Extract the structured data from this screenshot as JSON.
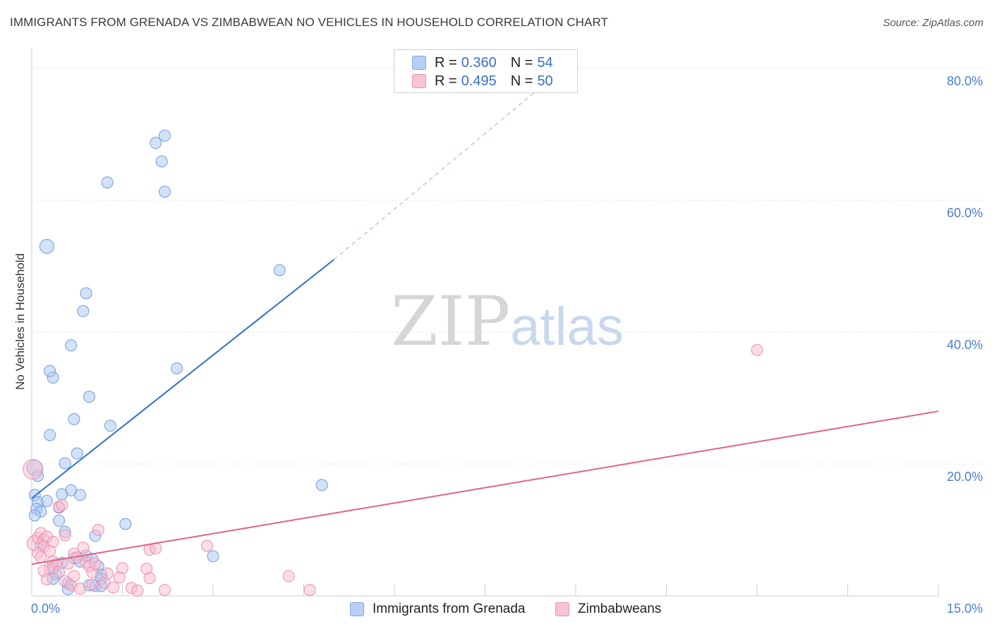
{
  "title": "IMMIGRANTS FROM GRENADA VS ZIMBABWEAN NO VEHICLES IN HOUSEHOLD CORRELATION CHART",
  "source": "Source: ZipAtlas.com",
  "watermark": {
    "zip": "ZIP",
    "atlas": "atlas"
  },
  "legend": {
    "rows": [
      {
        "r_label": "R =",
        "r_value": "0.360",
        "n_label": "N =",
        "n_value": "54",
        "color": "#b7d0f4",
        "border": "#7ea8e4"
      },
      {
        "r_label": "R =",
        "r_value": "0.495",
        "n_label": "N =",
        "n_value": "50",
        "color": "#f8c3d3",
        "border": "#ee92ae"
      }
    ]
  },
  "bottom_legend": [
    {
      "label": "Immigrants from Grenada",
      "color": "#b7d0f4",
      "border": "#7ea8e4"
    },
    {
      "label": "Zimbabweans",
      "color": "#f8c3d3",
      "border": "#ee92ae"
    }
  ],
  "chart_data": {
    "type": "scatter",
    "title": "IMMIGRANTS FROM GRENADA VS ZIMBABWEAN NO VEHICLES IN HOUSEHOLD CORRELATION CHART",
    "xlabel": "",
    "ylabel": "No Vehicles in Household",
    "xlim": [
      0,
      15
    ],
    "ylim": [
      0,
      80
    ],
    "x_tick_labels": [
      {
        "value": 0,
        "label": "0.0%"
      },
      {
        "value": 15,
        "label": "15.0%"
      }
    ],
    "y_tick_labels": [
      {
        "value": 20,
        "label": "20.0%"
      },
      {
        "value": 40,
        "label": "40.0%"
      },
      {
        "value": 60,
        "label": "60.0%"
      },
      {
        "value": 80,
        "label": "80.0%"
      }
    ],
    "x_minor_ticks": [
      1.5,
      3,
      4.5,
      6,
      7.5,
      9,
      10.5,
      12,
      13.5,
      15
    ],
    "y_gridlines": [
      20,
      40,
      60,
      80
    ],
    "series": [
      {
        "name": "Immigrants from Grenada",
        "color": "#a9c6f0",
        "stroke": "#6f9ee0",
        "trend": {
          "x0": 0,
          "y0": 14.8,
          "x1": 5,
          "y1": 51.0,
          "dash_to_x": 8.4,
          "dash_to_y": 77.0,
          "color": "#2f6fcc"
        },
        "points": [
          {
            "x": 0.05,
            "y": 19.4,
            "r": 11
          },
          {
            "x": 0.1,
            "y": 18.2
          },
          {
            "x": 0.05,
            "y": 15.3
          },
          {
            "x": 0.1,
            "y": 14.2
          },
          {
            "x": 0.08,
            "y": 13.2
          },
          {
            "x": 0.15,
            "y": 12.8
          },
          {
            "x": 0.05,
            "y": 12.2
          },
          {
            "x": 0.25,
            "y": 14.4
          },
          {
            "x": 0.3,
            "y": 24.4
          },
          {
            "x": 0.35,
            "y": 33.1
          },
          {
            "x": 0.3,
            "y": 34.1
          },
          {
            "x": 0.25,
            "y": 53.0,
            "r": 10
          },
          {
            "x": 0.65,
            "y": 38.0
          },
          {
            "x": 0.85,
            "y": 43.2
          },
          {
            "x": 0.9,
            "y": 45.9
          },
          {
            "x": 0.7,
            "y": 26.8
          },
          {
            "x": 0.95,
            "y": 30.2
          },
          {
            "x": 1.3,
            "y": 25.8
          },
          {
            "x": 0.75,
            "y": 21.6
          },
          {
            "x": 0.55,
            "y": 20.1
          },
          {
            "x": 0.65,
            "y": 16.0
          },
          {
            "x": 0.5,
            "y": 15.4
          },
          {
            "x": 0.8,
            "y": 15.3
          },
          {
            "x": 0.45,
            "y": 13.4
          },
          {
            "x": 0.45,
            "y": 11.4
          },
          {
            "x": 0.55,
            "y": 9.7
          },
          {
            "x": 1.05,
            "y": 9.1
          },
          {
            "x": 1.55,
            "y": 10.9
          },
          {
            "x": 0.9,
            "y": 6.1
          },
          {
            "x": 0.7,
            "y": 5.7
          },
          {
            "x": 1.0,
            "y": 5.6
          },
          {
            "x": 0.5,
            "y": 5.0
          },
          {
            "x": 1.1,
            "y": 4.5
          },
          {
            "x": 1.15,
            "y": 3.2
          },
          {
            "x": 1.15,
            "y": 2.6
          },
          {
            "x": 0.4,
            "y": 3.3
          },
          {
            "x": 0.35,
            "y": 2.6
          },
          {
            "x": 0.6,
            "y": 1.9
          },
          {
            "x": 0.95,
            "y": 1.6
          },
          {
            "x": 1.05,
            "y": 1.5
          },
          {
            "x": 1.15,
            "y": 1.5
          },
          {
            "x": 0.6,
            "y": 1.0
          },
          {
            "x": 1.25,
            "y": 62.7
          },
          {
            "x": 2.05,
            "y": 68.7
          },
          {
            "x": 2.2,
            "y": 69.8
          },
          {
            "x": 2.15,
            "y": 65.9
          },
          {
            "x": 2.2,
            "y": 61.3
          },
          {
            "x": 2.4,
            "y": 34.5
          },
          {
            "x": 4.1,
            "y": 49.4
          },
          {
            "x": 4.8,
            "y": 16.8
          },
          {
            "x": 3.0,
            "y": 6.0
          },
          {
            "x": 0.35,
            "y": 4.2
          },
          {
            "x": 0.8,
            "y": 5.2
          },
          {
            "x": 0.15,
            "y": 7.8
          }
        ]
      },
      {
        "name": "Zimbabweans",
        "color": "#f7bccd",
        "stroke": "#ee8fae",
        "trend": {
          "x0": 0,
          "y0": 4.8,
          "x1": 15,
          "y1": 28.0,
          "color": "#e2608c"
        },
        "points": [
          {
            "x": 0.02,
            "y": 19.2,
            "r": 14
          },
          {
            "x": 0.05,
            "y": 8.0,
            "r": 11
          },
          {
            "x": 0.1,
            "y": 8.8
          },
          {
            "x": 0.15,
            "y": 9.5
          },
          {
            "x": 0.2,
            "y": 8.5
          },
          {
            "x": 0.25,
            "y": 9.0
          },
          {
            "x": 0.2,
            "y": 7.5
          },
          {
            "x": 0.3,
            "y": 6.8
          },
          {
            "x": 0.35,
            "y": 5.2
          },
          {
            "x": 0.4,
            "y": 4.8
          },
          {
            "x": 0.45,
            "y": 13.5
          },
          {
            "x": 0.5,
            "y": 13.8
          },
          {
            "x": 0.55,
            "y": 9.2
          },
          {
            "x": 0.3,
            "y": 4.1
          },
          {
            "x": 0.2,
            "y": 3.8
          },
          {
            "x": 0.45,
            "y": 3.6
          },
          {
            "x": 0.55,
            "y": 2.2
          },
          {
            "x": 0.65,
            "y": 1.6
          },
          {
            "x": 0.7,
            "y": 6.4
          },
          {
            "x": 0.75,
            "y": 5.8
          },
          {
            "x": 0.85,
            "y": 7.3
          },
          {
            "x": 0.9,
            "y": 5.1
          },
          {
            "x": 0.95,
            "y": 4.5
          },
          {
            "x": 1.0,
            "y": 3.6
          },
          {
            "x": 1.05,
            "y": 4.9
          },
          {
            "x": 1.1,
            "y": 10.0
          },
          {
            "x": 1.2,
            "y": 2.0
          },
          {
            "x": 1.25,
            "y": 3.4
          },
          {
            "x": 1.5,
            "y": 4.2
          },
          {
            "x": 1.45,
            "y": 2.8
          },
          {
            "x": 1.65,
            "y": 1.2
          },
          {
            "x": 1.75,
            "y": 0.8
          },
          {
            "x": 1.9,
            "y": 4.1
          },
          {
            "x": 1.95,
            "y": 2.7
          },
          {
            "x": 1.95,
            "y": 7.0
          },
          {
            "x": 2.05,
            "y": 7.2
          },
          {
            "x": 2.2,
            "y": 0.9
          },
          {
            "x": 2.9,
            "y": 7.6
          },
          {
            "x": 4.25,
            "y": 3.0
          },
          {
            "x": 4.6,
            "y": 0.9
          },
          {
            "x": 12.0,
            "y": 37.3
          },
          {
            "x": 0.1,
            "y": 6.5
          },
          {
            "x": 0.6,
            "y": 4.9
          },
          {
            "x": 0.8,
            "y": 1.1
          },
          {
            "x": 1.35,
            "y": 1.3
          },
          {
            "x": 0.35,
            "y": 8.2
          },
          {
            "x": 1.0,
            "y": 1.7
          },
          {
            "x": 0.25,
            "y": 2.5
          },
          {
            "x": 0.15,
            "y": 5.9
          },
          {
            "x": 0.7,
            "y": 3.0
          }
        ]
      }
    ]
  }
}
